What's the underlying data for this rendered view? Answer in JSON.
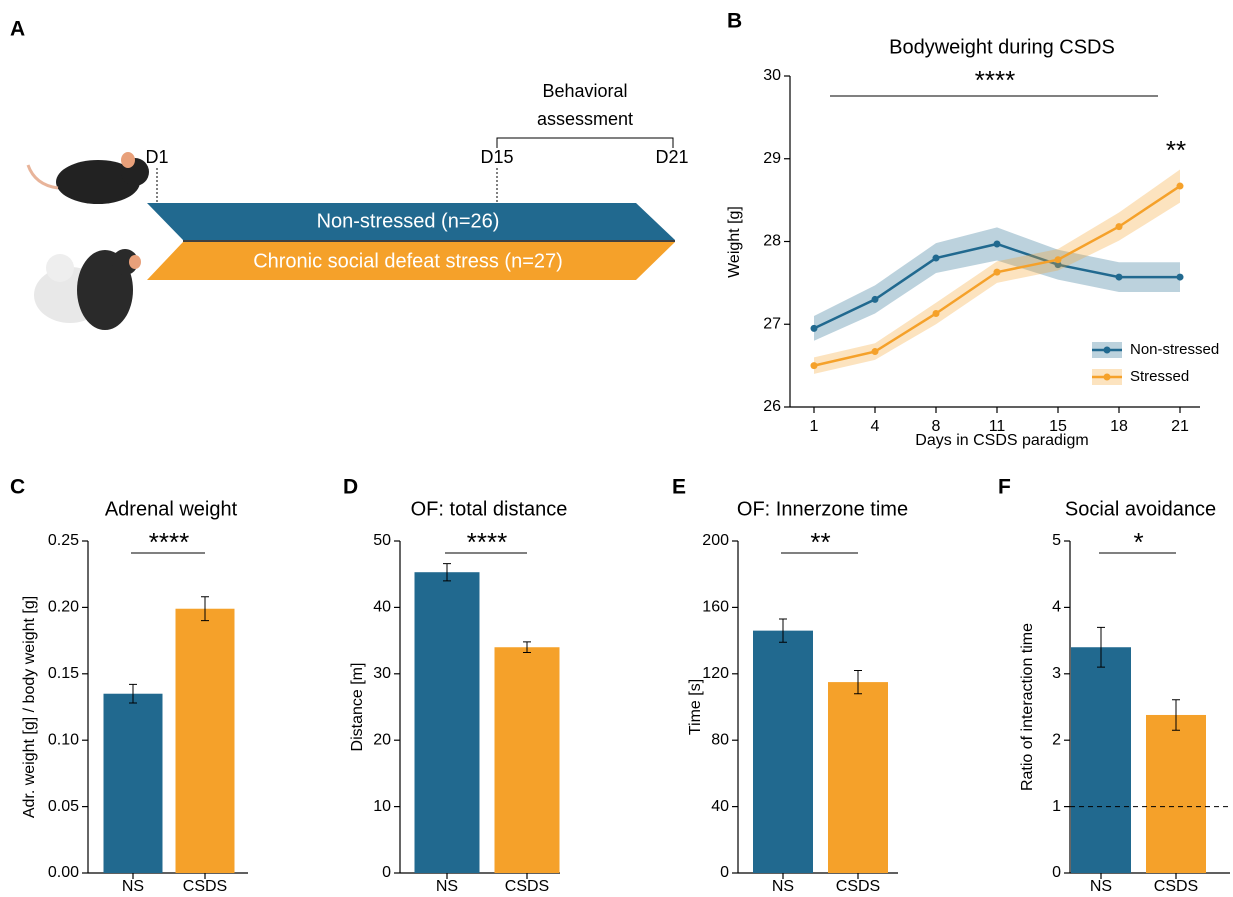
{
  "panel_labels": [
    "A",
    "B",
    "C",
    "D",
    "E",
    "F"
  ],
  "diagram": {
    "days": [
      "D1",
      "D15",
      "D21"
    ],
    "bracket_label": [
      "Behavioral",
      "assessment"
    ],
    "groups": [
      "Non-stressed (n=26)",
      "Chronic social defeat stress (n=27)"
    ]
  },
  "chart_data": [
    {
      "type": "line",
      "title": "Bodyweight during CSDS",
      "x_label": "Days in CSDS paradigm",
      "y_label": "Weight [g]",
      "categories": [
        "1",
        "4",
        "8",
        "11",
        "15",
        "18",
        "21"
      ],
      "ylim": [
        26,
        30
      ],
      "yticks": [
        26,
        27,
        28,
        29,
        30
      ],
      "legend": "lower right",
      "annotations": [
        "****",
        "**"
      ],
      "series": [
        {
          "name": "Non-stressed",
          "color": "#21698f",
          "values": [
            26.95,
            27.3,
            27.8,
            27.97,
            27.72,
            27.57,
            27.57
          ],
          "errors": [
            0.15,
            0.17,
            0.18,
            0.2,
            0.18,
            0.18,
            0.18
          ]
        },
        {
          "name": "Stressed",
          "color": "#f5a12a",
          "values": [
            26.5,
            26.67,
            27.13,
            27.63,
            27.78,
            28.18,
            28.67
          ],
          "errors": [
            0.1,
            0.1,
            0.13,
            0.13,
            0.13,
            0.17,
            0.2
          ]
        }
      ]
    },
    {
      "type": "bar",
      "title": "Adrenal weight",
      "y_label": "Adr. weight [g] / body weight [g]",
      "categories": [
        "NS",
        "CSDS"
      ],
      "colors": [
        "#21698f",
        "#f5a12a"
      ],
      "values": [
        0.135,
        0.199
      ],
      "errors": [
        0.007,
        0.009
      ],
      "significance": "****",
      "ylim": [
        0,
        0.25
      ],
      "yticks": [
        {
          "value": 0,
          "label": "0.00"
        },
        0.05,
        {
          "value": 0.1,
          "label": "0.10"
        },
        0.15,
        {
          "value": 0.2,
          "label": "0.20"
        },
        0.25
      ]
    },
    {
      "type": "bar",
      "title": "OF: total distance",
      "y_label": "Distance [m]",
      "categories": [
        "NS",
        "CSDS"
      ],
      "colors": [
        "#21698f",
        "#f5a12a"
      ],
      "values": [
        45.3,
        34.0
      ],
      "errors": [
        1.3,
        0.8
      ],
      "significance": "****",
      "ylim": [
        0,
        50
      ],
      "yticks": [
        0,
        10,
        20,
        30,
        40,
        50
      ]
    },
    {
      "type": "bar",
      "title": "OF: Innerzone time",
      "y_label": "Time [s]",
      "categories": [
        "NS",
        "CSDS"
      ],
      "colors": [
        "#21698f",
        "#f5a12a"
      ],
      "values": [
        146,
        115
      ],
      "errors": [
        7,
        7
      ],
      "significance": "**",
      "ylim": [
        0,
        200
      ],
      "yticks": [
        0,
        40,
        80,
        120,
        160,
        200
      ]
    },
    {
      "type": "bar",
      "title": "Social avoidance",
      "y_label": "Ratio of interaction time",
      "categories": [
        "NS",
        "CSDS"
      ],
      "colors": [
        "#21698f",
        "#f5a12a"
      ],
      "values": [
        3.4,
        2.38
      ],
      "errors": [
        0.3,
        0.23
      ],
      "significance": "*",
      "hline": 1,
      "ylim": [
        0,
        5
      ],
      "yticks": [
        0,
        1,
        2,
        3,
        4,
        5
      ]
    }
  ]
}
